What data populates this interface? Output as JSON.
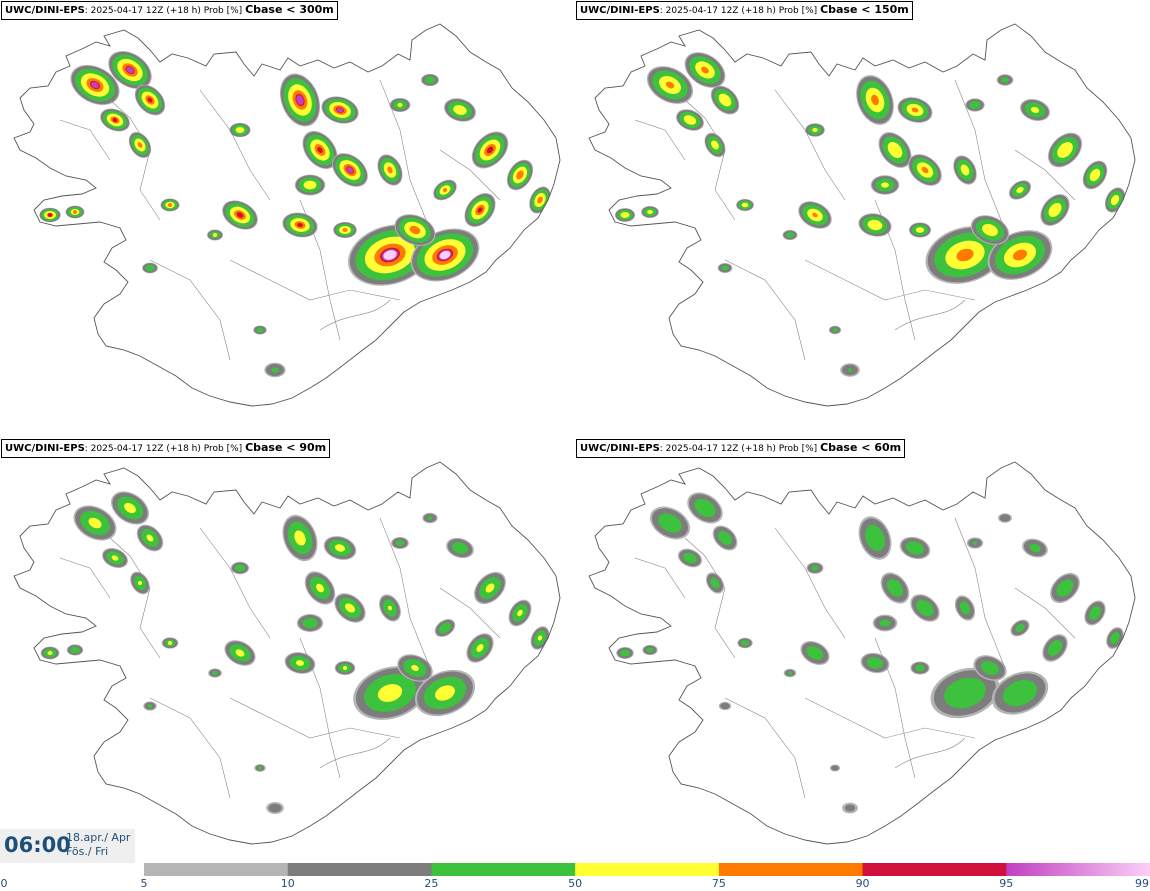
{
  "panels": [
    {
      "model": "UWC/DINI-EPS",
      "meta": "2025-04-17 12Z (+18 h) Prob [%]",
      "param": "Cbase < 300m",
      "level": 1.0
    },
    {
      "model": "UWC/DINI-EPS",
      "meta": "2025-04-17 12Z (+18 h) Prob [%]",
      "param": "Cbase < 150m",
      "level": 0.8
    },
    {
      "model": "UWC/DINI-EPS",
      "meta": "2025-04-17 12Z (+18 h) Prob [%]",
      "param": "Cbase < 90m",
      "level": 0.6
    },
    {
      "model": "UWC/DINI-EPS",
      "meta": "2025-04-17 12Z (+18 h) Prob [%]",
      "param": "Cbase < 60m",
      "level": 0.45
    }
  ],
  "valid_time": {
    "time": "06:00",
    "date_line1": "18.apr./ Apr",
    "date_line2": "Fös./ Fri"
  },
  "colorbar": {
    "ticks": [
      "0",
      "5",
      "10",
      "25",
      "50",
      "75",
      "90",
      "95",
      "99"
    ],
    "segments": [
      {
        "color": "#b5b5b5"
      },
      {
        "color": "#7d7d7d"
      },
      {
        "color": "#3cc23c"
      },
      {
        "color": "#ffff33"
      },
      {
        "color": "#ff7b00"
      },
      {
        "color": "#d0103a"
      },
      {
        "color": "#c23ec2",
        "gradient_to": "#fbd0f7"
      }
    ]
  }
}
